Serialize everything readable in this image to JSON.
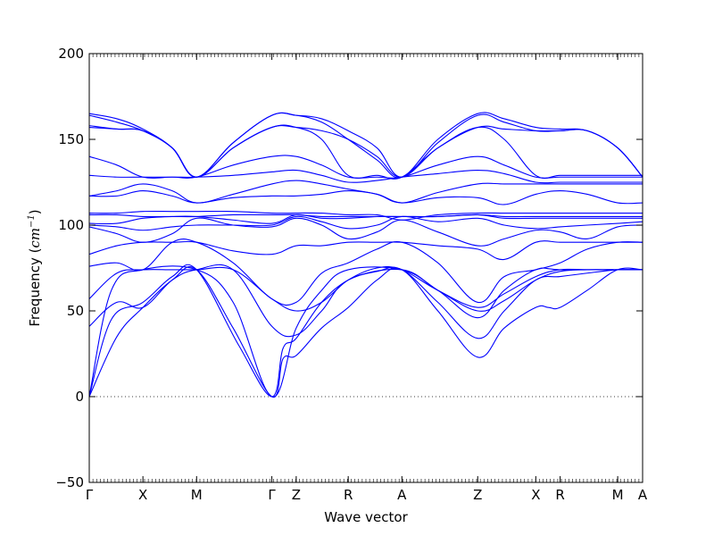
{
  "chart_data": {
    "type": "line",
    "title": "",
    "xlabel": "Wave vector",
    "ylabel_text": "Frequency (",
    "ylabel_unit": "cm",
    "ylabel_exp": "−1",
    "ylabel_close": ")",
    "ylim": [
      -50,
      200
    ],
    "yticks": [
      -50,
      0,
      50,
      100,
      150,
      200
    ],
    "ytick_labels": [
      "−50",
      "0",
      "50",
      "100",
      "150",
      "200"
    ],
    "xlim": [
      0,
      1
    ],
    "xticks": [
      {
        "label": "Γ",
        "x": 0.0
      },
      {
        "label": "X",
        "x": 0.097
      },
      {
        "label": "M",
        "x": 0.194
      },
      {
        "label": "Γ",
        "x": 0.33
      },
      {
        "label": "Z",
        "x": 0.374
      },
      {
        "label": "R",
        "x": 0.468
      },
      {
        "label": "A",
        "x": 0.565
      },
      {
        "label": "Z",
        "x": 0.702
      },
      {
        "label": "X",
        "x": 0.807
      },
      {
        "label": "R",
        "x": 0.851
      },
      {
        "label": "M",
        "x": 0.955
      },
      {
        "label": "A",
        "x": 1.0
      }
    ],
    "zero_line": true,
    "line_color": "#0000ff",
    "series": [
      {
        "x": [
          0,
          0.05,
          0.097,
          0.15,
          0.194,
          0.26,
          0.33,
          0.35,
          0.374,
          0.42,
          0.468,
          0.52,
          0.565,
          0.63,
          0.702,
          0.75,
          0.807,
          0.83,
          0.851,
          0.9,
          0.955,
          1.0
        ],
        "y": [
          0,
          35,
          52,
          68,
          74,
          40,
          0,
          22,
          24,
          40,
          52,
          68,
          74,
          50,
          23,
          40,
          52,
          52,
          52,
          62,
          74,
          74
        ]
      },
      {
        "x": [
          0,
          0.04,
          0.097,
          0.15,
          0.194,
          0.27,
          0.33,
          0.35,
          0.374,
          0.42,
          0.468,
          0.52,
          0.565,
          0.63,
          0.702,
          0.75,
          0.807,
          0.851,
          0.9,
          0.955,
          1.0
        ],
        "y": [
          0,
          45,
          55,
          70,
          74,
          30,
          0,
          28,
          34,
          55,
          68,
          73,
          74,
          55,
          34,
          50,
          68,
          70,
          72,
          74,
          74
        ]
      },
      {
        "x": [
          0,
          0.04,
          0.097,
          0.194,
          0.26,
          0.33,
          0.374,
          0.42,
          0.468,
          0.565,
          0.63,
          0.702,
          0.75,
          0.807,
          0.851,
          0.955,
          1.0
        ],
        "y": [
          0,
          62,
          74,
          74,
          55,
          0,
          40,
          62,
          74,
          74,
          62,
          46,
          62,
          74,
          74,
          74,
          74
        ]
      },
      {
        "x": [
          0,
          0.05,
          0.097,
          0.15,
          0.194,
          0.26,
          0.33,
          0.374,
          0.42,
          0.468,
          0.565,
          0.63,
          0.702,
          0.75,
          0.807,
          0.851,
          0.9,
          0.955,
          1.0
        ],
        "y": [
          41,
          55,
          52,
          68,
          74,
          74,
          41,
          36,
          50,
          68,
          74,
          62,
          50,
          56,
          68,
          73,
          74,
          74,
          74
        ]
      },
      {
        "x": [
          0,
          0.05,
          0.097,
          0.15,
          0.194,
          0.26,
          0.33,
          0.374,
          0.42,
          0.468,
          0.52,
          0.565,
          0.63,
          0.702,
          0.75,
          0.807,
          0.851,
          0.9,
          0.955,
          1.0
        ],
        "y": [
          57,
          72,
          74,
          74,
          74,
          74,
          57,
          50,
          55,
          68,
          75,
          74,
          62,
          52,
          60,
          70,
          74,
          74,
          74,
          74
        ]
      },
      {
        "x": [
          0,
          0.05,
          0.097,
          0.15,
          0.194,
          0.26,
          0.33,
          0.374,
          0.42,
          0.468,
          0.52,
          0.565,
          0.63,
          0.702,
          0.75,
          0.807,
          0.851,
          0.9,
          0.955,
          1.0
        ],
        "y": [
          76,
          78,
          74,
          90,
          90,
          78,
          57,
          55,
          72,
          78,
          86,
          90,
          78,
          55,
          70,
          74,
          78,
          86,
          90,
          90
        ]
      },
      {
        "x": [
          0,
          0.05,
          0.097,
          0.15,
          0.194,
          0.26,
          0.33,
          0.374,
          0.42,
          0.468,
          0.52,
          0.565,
          0.63,
          0.702,
          0.75,
          0.807,
          0.851,
          0.9,
          0.955,
          1.0
        ],
        "y": [
          83,
          88,
          90,
          90,
          90,
          85,
          83,
          88,
          88,
          90,
          90,
          90,
          88,
          86,
          80,
          90,
          90,
          90,
          90,
          90
        ]
      },
      {
        "x": [
          0,
          0.05,
          0.097,
          0.15,
          0.194,
          0.26,
          0.33,
          0.374,
          0.42,
          0.468,
          0.52,
          0.565,
          0.63,
          0.702,
          0.75,
          0.807,
          0.851,
          0.9,
          0.955,
          1.0
        ],
        "y": [
          99,
          95,
          90,
          95,
          104,
          100,
          99,
          104,
          100,
          92,
          96,
          103,
          96,
          88,
          92,
          97,
          96,
          92,
          99,
          100
        ]
      },
      {
        "x": [
          0,
          0.05,
          0.097,
          0.15,
          0.194,
          0.26,
          0.33,
          0.374,
          0.42,
          0.468,
          0.52,
          0.565,
          0.63,
          0.702,
          0.75,
          0.807,
          0.851,
          0.9,
          0.955,
          1.0
        ],
        "y": [
          100,
          99,
          97,
          99,
          100,
          100,
          100,
          105,
          102,
          98,
          100,
          105,
          102,
          104,
          100,
          98,
          99,
          100,
          101,
          102
        ]
      },
      {
        "x": [
          0,
          0.05,
          0.097,
          0.15,
          0.194,
          0.26,
          0.33,
          0.374,
          0.42,
          0.468,
          0.52,
          0.565,
          0.63,
          0.702,
          0.75,
          0.807,
          0.851,
          0.9,
          0.955,
          1.0
        ],
        "y": [
          101,
          101,
          104,
          105,
          105,
          103,
          101,
          106,
          104,
          104,
          105,
          105,
          105,
          106,
          104,
          104,
          104,
          104,
          104,
          104
        ]
      },
      {
        "x": [
          0,
          0.05,
          0.097,
          0.15,
          0.194,
          0.26,
          0.33,
          0.374,
          0.42,
          0.468,
          0.52,
          0.565,
          0.63,
          0.702,
          0.75,
          0.807,
          0.851,
          0.9,
          0.955,
          1.0
        ],
        "y": [
          106,
          106,
          105,
          105,
          105,
          106,
          106,
          106,
          105,
          105,
          105,
          105,
          105,
          106,
          105,
          105,
          105,
          105,
          105,
          105
        ]
      },
      {
        "x": [
          0,
          0.05,
          0.097,
          0.15,
          0.194,
          0.26,
          0.33,
          0.374,
          0.42,
          0.468,
          0.52,
          0.565,
          0.63,
          0.702,
          0.75,
          0.807,
          0.851,
          0.9,
          0.955,
          1.0
        ],
        "y": [
          107,
          107,
          108,
          108,
          108,
          108,
          107,
          107,
          107,
          106,
          106,
          103,
          106,
          107,
          107,
          107,
          107,
          107,
          107,
          107
        ]
      },
      {
        "x": [
          0,
          0.05,
          0.097,
          0.15,
          0.194,
          0.26,
          0.33,
          0.374,
          0.42,
          0.468,
          0.52,
          0.565,
          0.63,
          0.702,
          0.75,
          0.807,
          0.851,
          0.9,
          0.955,
          1.0
        ],
        "y": [
          117,
          117,
          120,
          117,
          113,
          116,
          117,
          117,
          118,
          120,
          118,
          113,
          116,
          116,
          112,
          118,
          120,
          118,
          113,
          113
        ]
      },
      {
        "x": [
          0,
          0.05,
          0.097,
          0.15,
          0.194,
          0.26,
          0.33,
          0.374,
          0.42,
          0.468,
          0.52,
          0.565,
          0.63,
          0.702,
          0.75,
          0.807,
          0.851,
          0.9,
          0.955,
          1.0
        ],
        "y": [
          117,
          120,
          124,
          120,
          113,
          118,
          124,
          126,
          124,
          121,
          118,
          113,
          119,
          124,
          124,
          124,
          124,
          124,
          124,
          124
        ]
      },
      {
        "x": [
          0,
          0.05,
          0.097,
          0.15,
          0.194,
          0.26,
          0.33,
          0.374,
          0.42,
          0.468,
          0.52,
          0.565,
          0.63,
          0.702,
          0.75,
          0.807,
          0.851,
          0.9,
          0.955,
          1.0
        ],
        "y": [
          129,
          128,
          128,
          128,
          128,
          129,
          131,
          132,
          129,
          125,
          126,
          128,
          130,
          132,
          130,
          125,
          125,
          125,
          125,
          125
        ]
      },
      {
        "x": [
          0,
          0.05,
          0.097,
          0.15,
          0.194,
          0.26,
          0.33,
          0.374,
          0.42,
          0.468,
          0.52,
          0.565,
          0.63,
          0.702,
          0.75,
          0.807,
          0.851,
          0.9,
          0.955,
          1.0
        ],
        "y": [
          140,
          135,
          128,
          128,
          128,
          135,
          140,
          140,
          135,
          128,
          128,
          128,
          135,
          140,
          135,
          128,
          128,
          128,
          128,
          128
        ]
      },
      {
        "x": [
          0,
          0.05,
          0.097,
          0.15,
          0.194,
          0.26,
          0.33,
          0.374,
          0.42,
          0.468,
          0.52,
          0.565,
          0.63,
          0.702,
          0.75,
          0.807,
          0.851,
          0.9,
          0.955,
          1.0
        ],
        "y": [
          157,
          156,
          155,
          145,
          128,
          145,
          157,
          157,
          150,
          129,
          129,
          128,
          145,
          157,
          150,
          129,
          129,
          129,
          129,
          129
        ]
      },
      {
        "x": [
          0,
          0.05,
          0.097,
          0.15,
          0.194,
          0.26,
          0.33,
          0.374,
          0.42,
          0.468,
          0.52,
          0.565,
          0.63,
          0.702,
          0.75,
          0.807,
          0.851,
          0.9,
          0.955,
          1.0
        ],
        "y": [
          158,
          156,
          155,
          145,
          128,
          145,
          157,
          157,
          155,
          150,
          140,
          128,
          145,
          157,
          156,
          155,
          155,
          155,
          145,
          128
        ]
      },
      {
        "x": [
          0,
          0.05,
          0.097,
          0.15,
          0.194,
          0.26,
          0.33,
          0.374,
          0.42,
          0.468,
          0.52,
          0.565,
          0.63,
          0.702,
          0.75,
          0.807,
          0.851,
          0.9,
          0.955,
          1.0
        ],
        "y": [
          164,
          160,
          155,
          145,
          128,
          148,
          164,
          164,
          162,
          155,
          145,
          128,
          148,
          164,
          160,
          155,
          155,
          155,
          145,
          128
        ]
      },
      {
        "x": [
          0,
          0.05,
          0.097,
          0.15,
          0.194,
          0.26,
          0.33,
          0.374,
          0.42,
          0.468,
          0.52,
          0.565,
          0.63,
          0.702,
          0.75,
          0.807,
          0.851,
          0.9,
          0.955,
          1.0
        ],
        "y": [
          165,
          162,
          156,
          145,
          128,
          148,
          164,
          164,
          160,
          150,
          138,
          128,
          150,
          165,
          162,
          157,
          156,
          155,
          145,
          128
        ]
      }
    ]
  }
}
